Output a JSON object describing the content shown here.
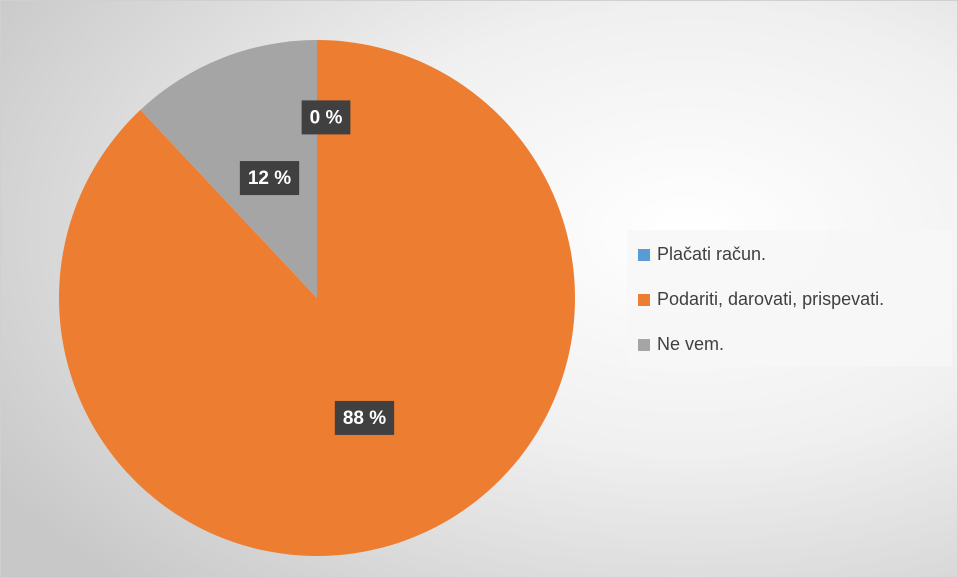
{
  "chart_data": {
    "type": "pie",
    "categories": [
      "Plačati račun.",
      "Podariti, darovati, prispevati.",
      "Ne vem."
    ],
    "values": [
      0,
      88,
      12
    ],
    "value_labels": [
      "0 %",
      "88 %",
      "12 %"
    ],
    "colors": [
      "#5b9bd5",
      "#ed7d31",
      "#a5a5a5"
    ],
    "legend": "right"
  }
}
